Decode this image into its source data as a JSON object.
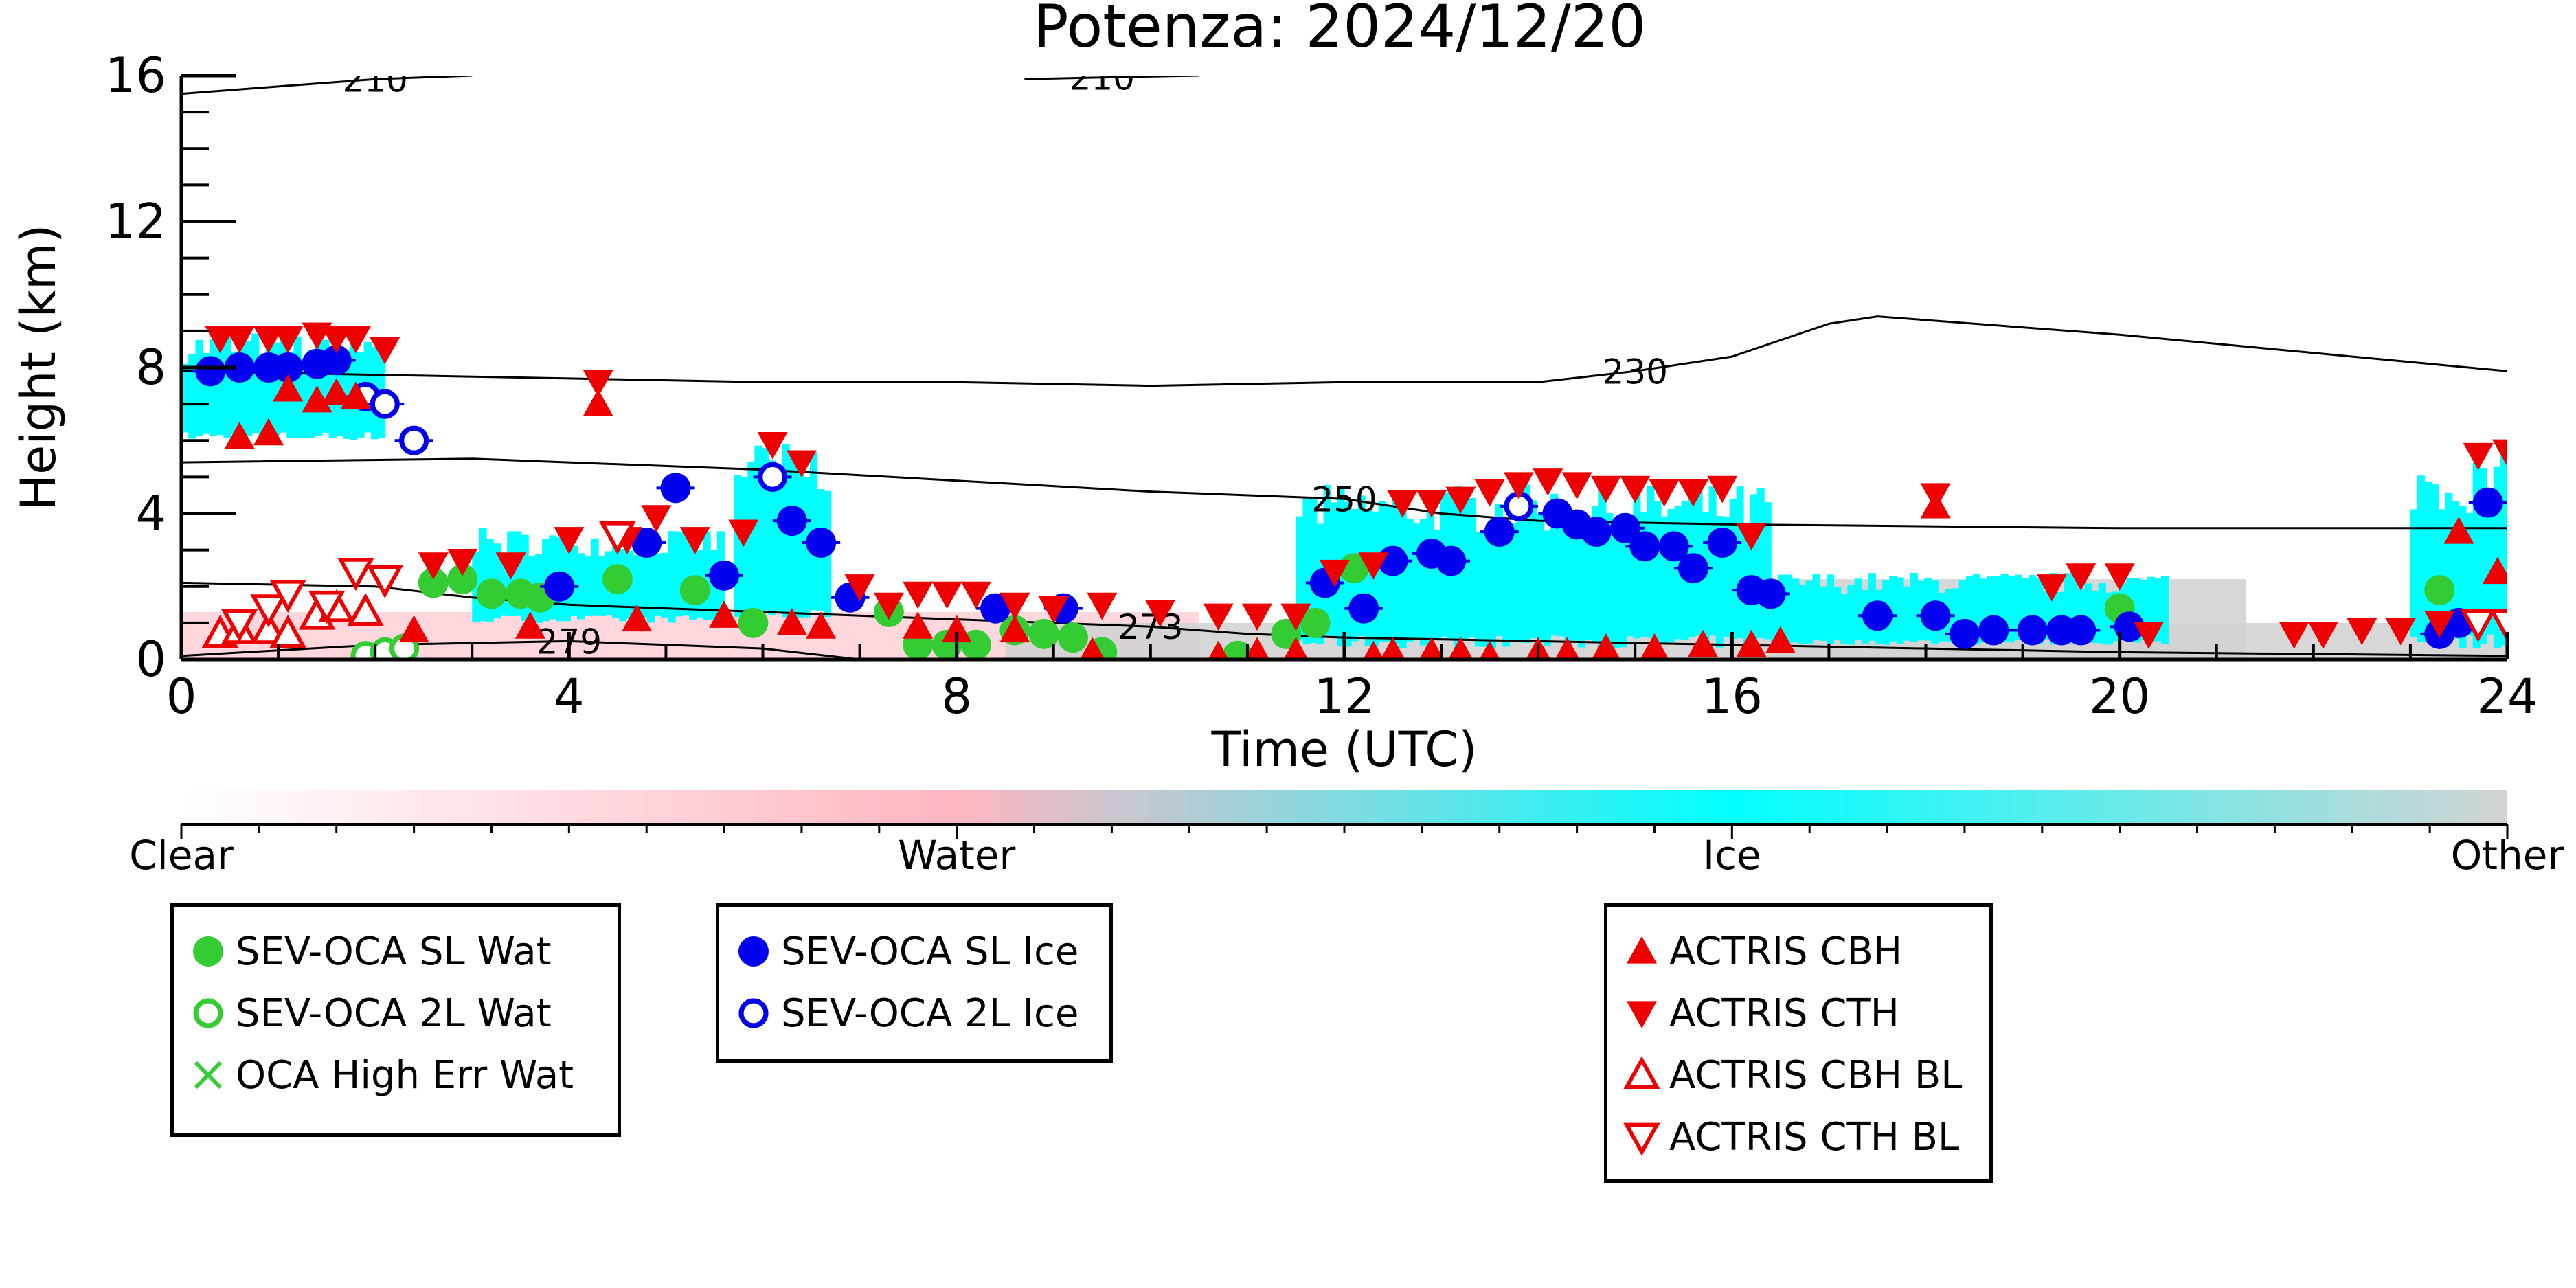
{
  "chart_data": {
    "type": "scatter",
    "title": "Potenza: 2024/12/20",
    "xlabel": "Time (UTC)",
    "ylabel": "Height (km)",
    "xlim": [
      0,
      24
    ],
    "ylim": [
      0,
      16
    ],
    "xticks": [
      0,
      4,
      8,
      12,
      16,
      20,
      24
    ],
    "yticks": [
      0,
      4,
      8,
      12,
      16
    ],
    "background": {
      "type": "classification-mask",
      "colorbar": {
        "labels": [
          "Clear",
          "Water",
          "Ice",
          "Other"
        ],
        "colors": [
          "#ffffff",
          "#ffb6c1",
          "#00ffff",
          "#d3d3d3"
        ]
      },
      "ice_regions": [
        {
          "x": [
            0.0,
            2.1
          ],
          "y": [
            6.0,
            9.0
          ]
        },
        {
          "x": [
            5.7,
            6.7
          ],
          "y": [
            1.0,
            6.0
          ]
        },
        {
          "x": [
            3.0,
            5.6
          ],
          "y": [
            1.0,
            3.6
          ]
        },
        {
          "x": [
            11.5,
            16.4
          ],
          "y": [
            0.3,
            4.8
          ]
        },
        {
          "x": [
            16.4,
            20.5
          ],
          "y": [
            0.4,
            2.4
          ]
        },
        {
          "x": [
            23.0,
            24.0
          ],
          "y": [
            0.3,
            5.6
          ]
        }
      ]
    },
    "contours": [
      {
        "label": "210",
        "points": [
          [
            0.0,
            15.5
          ],
          [
            1.0,
            15.7
          ],
          [
            2.0,
            15.9
          ],
          [
            3.0,
            16.0
          ]
        ]
      },
      {
        "label": "210",
        "points": [
          [
            8.7,
            15.9
          ],
          [
            9.5,
            15.95
          ],
          [
            10.5,
            16.0
          ]
        ]
      },
      {
        "label": "230",
        "points": [
          [
            0.0,
            7.9
          ],
          [
            2.0,
            7.8
          ],
          [
            4.0,
            7.7
          ],
          [
            6.0,
            7.6
          ],
          [
            8.0,
            7.6
          ],
          [
            10.0,
            7.5
          ],
          [
            12.0,
            7.6
          ],
          [
            14.0,
            7.6
          ],
          [
            15.0,
            7.9
          ],
          [
            16.0,
            8.3
          ],
          [
            17.0,
            9.2
          ],
          [
            17.5,
            9.4
          ],
          [
            18.5,
            9.2
          ],
          [
            20.0,
            8.9
          ],
          [
            22.0,
            8.4
          ],
          [
            24.0,
            7.9
          ]
        ]
      },
      {
        "label": "250",
        "points": [
          [
            0.0,
            5.4
          ],
          [
            3.0,
            5.5
          ],
          [
            6.0,
            5.2
          ],
          [
            8.0,
            4.9
          ],
          [
            10.0,
            4.6
          ],
          [
            12.0,
            4.4
          ],
          [
            13.0,
            4.0
          ],
          [
            14.0,
            3.8
          ],
          [
            16.0,
            3.7
          ],
          [
            20.0,
            3.6
          ],
          [
            24.0,
            3.6
          ]
        ]
      },
      {
        "label": "273",
        "points": [
          [
            0.0,
            2.1
          ],
          [
            2.0,
            2.0
          ],
          [
            3.0,
            1.7
          ],
          [
            4.0,
            1.5
          ],
          [
            6.0,
            1.3
          ],
          [
            8.0,
            1.1
          ],
          [
            10.0,
            0.9
          ],
          [
            11.0,
            0.7
          ],
          [
            12.0,
            0.6
          ],
          [
            14.0,
            0.5
          ],
          [
            16.0,
            0.4
          ],
          [
            20.0,
            0.2
          ],
          [
            24.0,
            0.1
          ]
        ]
      },
      {
        "label": "279",
        "points": [
          [
            0.0,
            0.1
          ],
          [
            2.0,
            0.4
          ],
          [
            4.0,
            0.5
          ],
          [
            6.0,
            0.3
          ],
          [
            7.0,
            0.0
          ]
        ]
      }
    ],
    "series": [
      {
        "name": "SEV-OCA SL Wat",
        "marker": "filled-circle",
        "color": "#33cc33",
        "x": [
          2.6,
          2.9,
          3.2,
          3.5,
          3.7,
          4.5,
          5.3,
          5.9,
          7.3,
          7.6,
          7.9,
          8.2,
          8.6,
          8.9,
          9.2,
          9.5,
          10.9,
          11.4,
          11.7,
          12.1,
          20.0,
          23.3
        ],
        "y": [
          2.1,
          2.2,
          1.8,
          1.8,
          1.7,
          2.2,
          1.9,
          1.0,
          1.3,
          0.4,
          0.4,
          0.4,
          0.8,
          0.7,
          0.6,
          0.2,
          0.1,
          0.7,
          1.0,
          2.5,
          1.4,
          1.9
        ]
      },
      {
        "name": "SEV-OCA 2L Wat",
        "marker": "open-circle",
        "color": "#33cc33",
        "x": [
          1.9,
          2.1,
          2.3
        ],
        "y": [
          0.1,
          0.2,
          0.3
        ]
      },
      {
        "name": "OCA High Err Wat",
        "marker": "x",
        "color": "#33cc33",
        "x": [],
        "y": []
      },
      {
        "name": "SEV-OCA SL Ice",
        "marker": "filled-circle",
        "color": "#0000ee",
        "x": [
          0.3,
          0.6,
          0.9,
          1.1,
          1.4,
          1.6,
          3.9,
          4.8,
          5.1,
          5.6,
          6.3,
          6.6,
          6.9,
          8.4,
          9.1,
          11.8,
          12.2,
          12.5,
          12.9,
          13.1,
          13.6,
          14.2,
          14.4,
          14.6,
          14.9,
          15.1,
          15.4,
          15.6,
          15.9,
          16.2,
          16.4,
          17.5,
          18.1,
          18.4,
          18.7,
          19.1,
          19.4,
          19.6,
          20.1,
          23.3,
          23.5,
          23.8
        ],
        "y": [
          7.9,
          8.0,
          8.0,
          8.0,
          8.1,
          8.2,
          2.0,
          3.2,
          4.7,
          2.3,
          3.8,
          3.2,
          1.7,
          1.4,
          1.4,
          2.1,
          1.4,
          2.7,
          2.9,
          2.7,
          3.5,
          4.0,
          3.7,
          3.5,
          3.6,
          3.1,
          3.1,
          2.5,
          3.2,
          1.9,
          1.8,
          1.2,
          1.2,
          0.7,
          0.8,
          0.8,
          0.8,
          0.8,
          0.9,
          0.7,
          1.0,
          4.3
        ]
      },
      {
        "name": "SEV-OCA 2L Ice",
        "marker": "open-circle",
        "color": "#0000ee",
        "x": [
          1.9,
          2.1,
          2.4,
          6.1,
          13.8
        ],
        "y": [
          7.2,
          7.0,
          6.0,
          5.0,
          4.2
        ]
      },
      {
        "name": "ACTRIS CBH",
        "marker": "filled-triangle-up",
        "color": "#ee0000",
        "x": [
          0.6,
          0.9,
          1.1,
          1.4,
          1.6,
          1.8,
          2.4,
          3.6,
          4.3,
          4.7,
          5.6,
          6.3,
          6.6,
          7.6,
          8.0,
          8.6,
          9.4,
          10.7,
          11.1,
          11.5,
          12.3,
          12.5,
          12.9,
          13.2,
          13.5,
          14.0,
          14.3,
          14.7,
          15.2,
          15.7,
          16.2,
          16.5,
          18.1,
          23.5,
          23.9
        ],
        "y": [
          6.1,
          6.2,
          7.4,
          7.1,
          7.3,
          7.2,
          0.8,
          0.9,
          7.0,
          1.1,
          1.2,
          1.0,
          0.9,
          0.9,
          0.8,
          0.8,
          0.2,
          0.1,
          0.2,
          0.2,
          0.1,
          0.2,
          0.2,
          0.2,
          0.1,
          0.2,
          0.2,
          0.3,
          0.3,
          0.4,
          0.4,
          0.5,
          4.2,
          3.5,
          2.4
        ]
      },
      {
        "name": "ACTRIS CTH",
        "marker": "filled-triangle-down",
        "color": "#ee0000",
        "x": [
          0.4,
          0.6,
          0.9,
          1.1,
          1.4,
          1.6,
          1.8,
          2.1,
          2.6,
          2.9,
          3.4,
          4.0,
          4.3,
          4.6,
          4.9,
          5.3,
          5.8,
          6.1,
          6.4,
          7.0,
          7.3,
          7.6,
          7.9,
          8.2,
          8.6,
          9.0,
          9.5,
          10.1,
          10.7,
          11.1,
          11.5,
          11.9,
          12.3,
          12.6,
          12.9,
          13.2,
          13.5,
          13.8,
          14.1,
          14.4,
          14.7,
          15.0,
          15.3,
          15.6,
          15.9,
          16.2,
          18.1,
          19.3,
          19.6,
          20.0,
          20.3,
          21.8,
          22.1,
          22.5,
          22.9,
          23.3,
          23.7,
          24.0
        ],
        "y": [
          8.8,
          8.8,
          8.8,
          8.8,
          8.9,
          8.8,
          8.8,
          8.5,
          2.6,
          2.7,
          2.6,
          3.3,
          7.6,
          3.3,
          3.9,
          3.3,
          3.5,
          5.9,
          5.4,
          2.0,
          1.5,
          1.8,
          1.8,
          1.8,
          1.5,
          1.4,
          1.5,
          1.3,
          1.2,
          1.2,
          1.2,
          2.4,
          2.6,
          4.3,
          4.3,
          4.4,
          4.6,
          4.8,
          4.9,
          4.8,
          4.7,
          4.7,
          4.6,
          4.6,
          4.7,
          3.4,
          4.5,
          2.0,
          2.3,
          2.3,
          0.7,
          0.7,
          0.7,
          0.8,
          0.8,
          1.0,
          5.6,
          5.7
        ]
      },
      {
        "name": "ACTRIS CBH BL",
        "marker": "open-triangle-up",
        "color": "#ee0000",
        "x": [
          0.4,
          0.6,
          0.9,
          1.1,
          1.4,
          1.6,
          1.9
        ],
        "y": [
          0.7,
          0.8,
          0.8,
          0.7,
          1.2,
          1.4,
          1.3
        ]
      },
      {
        "name": "ACTRIS CTH BL",
        "marker": "open-triangle-down",
        "color": "#ee0000",
        "x": [
          0.6,
          0.9,
          1.1,
          1.5,
          1.8,
          2.1,
          4.5,
          23.7,
          24.0
        ],
        "y": [
          1.0,
          1.4,
          1.8,
          1.5,
          2.4,
          2.2,
          3.4,
          1.0,
          1.0
        ]
      }
    ]
  },
  "legends": [
    {
      "items": [
        {
          "label": "SEV-OCA SL Wat",
          "marker": "filled-circle",
          "color": "#33cc33"
        },
        {
          "label": "SEV-OCA 2L Wat",
          "marker": "open-circle",
          "color": "#33cc33"
        },
        {
          "label": "OCA High Err Wat",
          "marker": "x",
          "color": "#33cc33"
        }
      ]
    },
    {
      "items": [
        {
          "label": "SEV-OCA SL Ice",
          "marker": "filled-circle",
          "color": "#0000ee"
        },
        {
          "label": "SEV-OCA 2L Ice",
          "marker": "open-circle",
          "color": "#0000ee"
        }
      ]
    },
    {
      "items": [
        {
          "label": "ACTRIS CBH",
          "marker": "filled-triangle-up",
          "color": "#ee0000"
        },
        {
          "label": "ACTRIS CTH",
          "marker": "filled-triangle-down",
          "color": "#ee0000"
        },
        {
          "label": "ACTRIS CBH BL",
          "marker": "open-triangle-up",
          "color": "#ee0000"
        },
        {
          "label": "ACTRIS CTH BL",
          "marker": "open-triangle-down",
          "color": "#ee0000"
        }
      ]
    }
  ]
}
